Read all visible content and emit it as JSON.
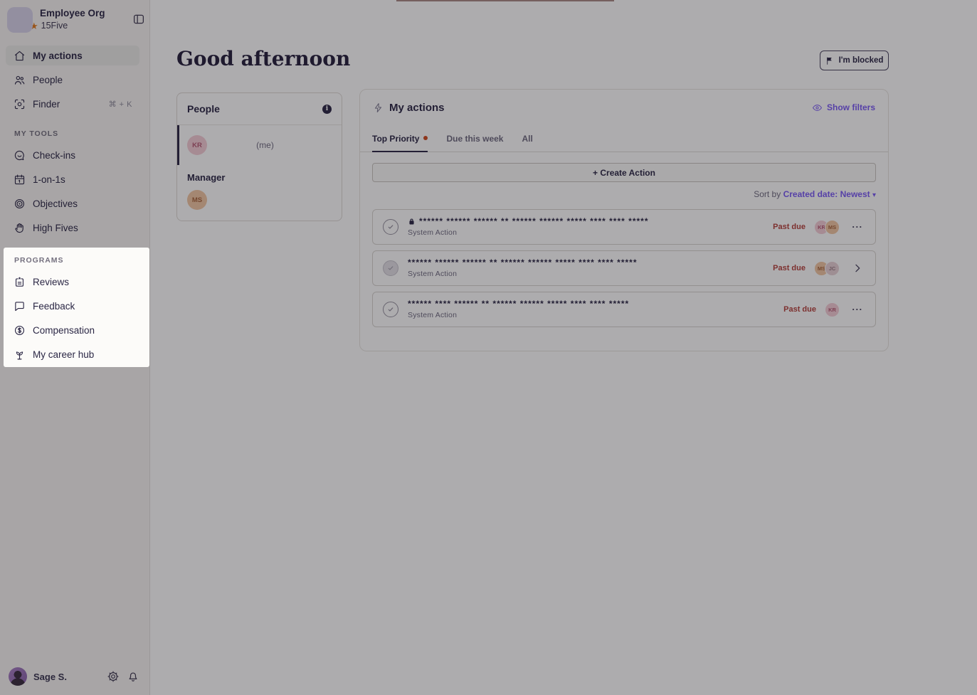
{
  "colors": {
    "accent_purple": "#7a5af5",
    "ink_navy": "#2b2745",
    "muted_gray": "#6f6b80",
    "past_due_red": "#b5413c",
    "priority_dot_orange": "#cf4b21",
    "star_orange": "#e07a1f",
    "sidebar_bg": "#f7f5f3",
    "spotlight_bg": "#fcfbf9"
  },
  "sidebar": {
    "org_name": "Employee Org",
    "product_name": "15Five",
    "nav": [
      {
        "label": "My actions",
        "icon": "home-icon",
        "active": true
      },
      {
        "label": "People",
        "icon": "people-icon",
        "active": false
      },
      {
        "label": "Finder",
        "icon": "finder-icon",
        "active": false,
        "shortcut": "⌘ + K"
      }
    ],
    "my_tools": {
      "section_label": "MY TOOLS",
      "items": [
        {
          "label": "Check-ins",
          "icon": "checkins-icon"
        },
        {
          "label": "1-on-1s",
          "icon": "calendar-icon"
        },
        {
          "label": "Objectives",
          "icon": "target-icon"
        },
        {
          "label": "High Fives",
          "icon": "hand-icon"
        }
      ]
    },
    "programs": {
      "section_label": "PROGRAMS",
      "items": [
        {
          "label": "Reviews",
          "icon": "reviews-icon"
        },
        {
          "label": "Feedback",
          "icon": "feedback-icon"
        },
        {
          "label": "Compensation",
          "icon": "compensation-icon"
        },
        {
          "label": "My career hub",
          "icon": "career-hub-icon"
        }
      ]
    },
    "user": {
      "name": "Sage  S."
    }
  },
  "header": {
    "greeting": "Good afternoon",
    "blocked_button_label": "I'm blocked"
  },
  "people_card": {
    "title": "People",
    "me_row": {
      "initials": "KR",
      "avatar_color": "pink",
      "suffix": "(me)"
    },
    "manager_label": "Manager",
    "manager": {
      "initials": "MS",
      "avatar_color": "orange"
    }
  },
  "actions_panel": {
    "title": "My actions",
    "show_filters_label": "Show filters",
    "tabs": [
      {
        "label": "Top Priority",
        "active": true,
        "has_dot": true
      },
      {
        "label": "Due this week",
        "active": false,
        "has_dot": false
      },
      {
        "label": "All",
        "active": false,
        "has_dot": false
      }
    ],
    "create_action_label": "+ Create Action",
    "sort": {
      "label": "Sort by",
      "value": "Created date: Newest",
      "caret": "▾"
    },
    "rows": [
      {
        "check_style": "outline",
        "locked": true,
        "title": "****** ****** ****** ** ****** ****** ***** **** **** *****",
        "subtitle": "System Action",
        "due_label": "Past due",
        "assignees": [
          {
            "initials": "KR",
            "avatar_color": "pink"
          },
          {
            "initials": "MS",
            "avatar_color": "orange"
          }
        ],
        "trailing": "menu"
      },
      {
        "check_style": "filled",
        "locked": false,
        "title": "****** ****** ****** ** ****** ****** ***** **** **** *****",
        "subtitle": "System Action",
        "due_label": "Past due",
        "assignees": [
          {
            "initials": "MS",
            "avatar_color": "orange"
          },
          {
            "initials": "JC",
            "avatar_color": "mauve"
          }
        ],
        "trailing": "chevron"
      },
      {
        "check_style": "outline",
        "locked": false,
        "title": "****** **** ****** ** ****** ****** ***** **** **** *****",
        "subtitle": "System Action",
        "due_label": "Past due",
        "assignees": [
          {
            "initials": "KR",
            "avatar_color": "pink"
          }
        ],
        "trailing": "menu"
      }
    ]
  }
}
